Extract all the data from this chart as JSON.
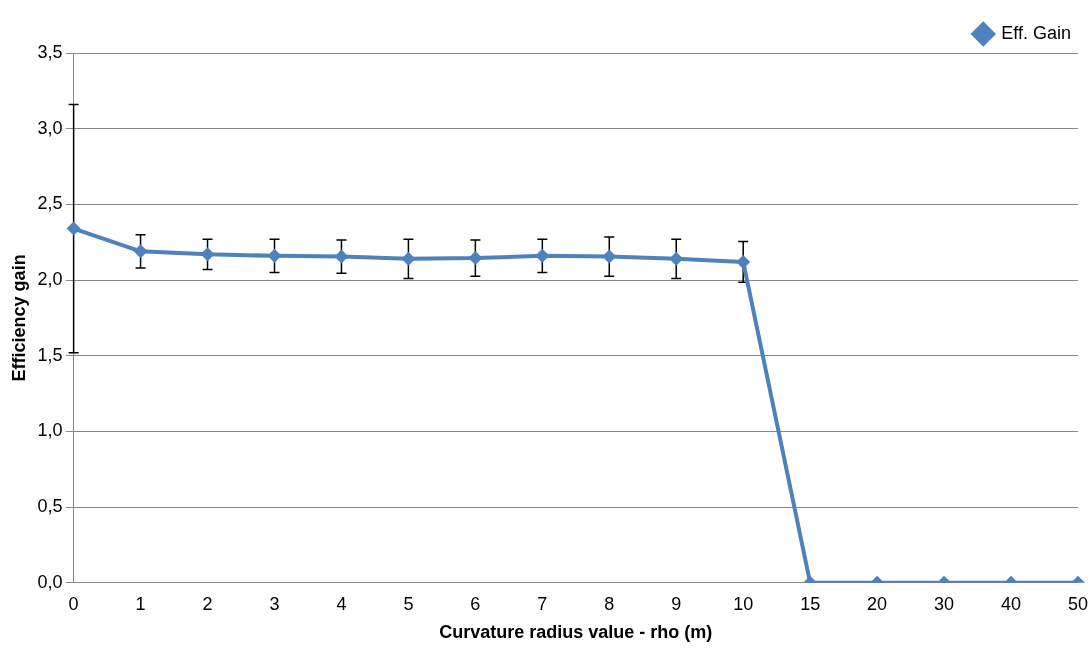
{
  "chart_data": {
    "type": "line",
    "xlabel": "Curvature radius value - rho (m)",
    "ylabel": "Efficiency gain",
    "categories": [
      "0",
      "1",
      "2",
      "3",
      "4",
      "5",
      "6",
      "7",
      "8",
      "9",
      "10",
      "15",
      "20",
      "30",
      "40",
      "50"
    ],
    "series": [
      {
        "name": "Eff. Gain",
        "color": "#4f81bd",
        "values": [
          2.34,
          2.19,
          2.17,
          2.16,
          2.155,
          2.14,
          2.145,
          2.16,
          2.155,
          2.14,
          2.12,
          0,
          0,
          0,
          0,
          0
        ],
        "errors": [
          0.82,
          0.11,
          0.1,
          0.11,
          0.11,
          0.13,
          0.12,
          0.11,
          0.13,
          0.13,
          0.135,
          null,
          null,
          null,
          null,
          null
        ]
      }
    ],
    "ylim": [
      0,
      3.5
    ],
    "yticks": [
      {
        "value": 0,
        "label": "0,0"
      },
      {
        "value": 0.5,
        "label": "0,5"
      },
      {
        "value": 1,
        "label": "1,0"
      },
      {
        "value": 1.5,
        "label": "1,5"
      },
      {
        "value": 2,
        "label": "2,0"
      },
      {
        "value": 2.5,
        "label": "2,5"
      },
      {
        "value": 3,
        "label": "3,0"
      },
      {
        "value": 3.5,
        "label": "3,5"
      }
    ],
    "grid": "y",
    "legend": "top right",
    "marker": "diamond",
    "line_style": "solid"
  }
}
